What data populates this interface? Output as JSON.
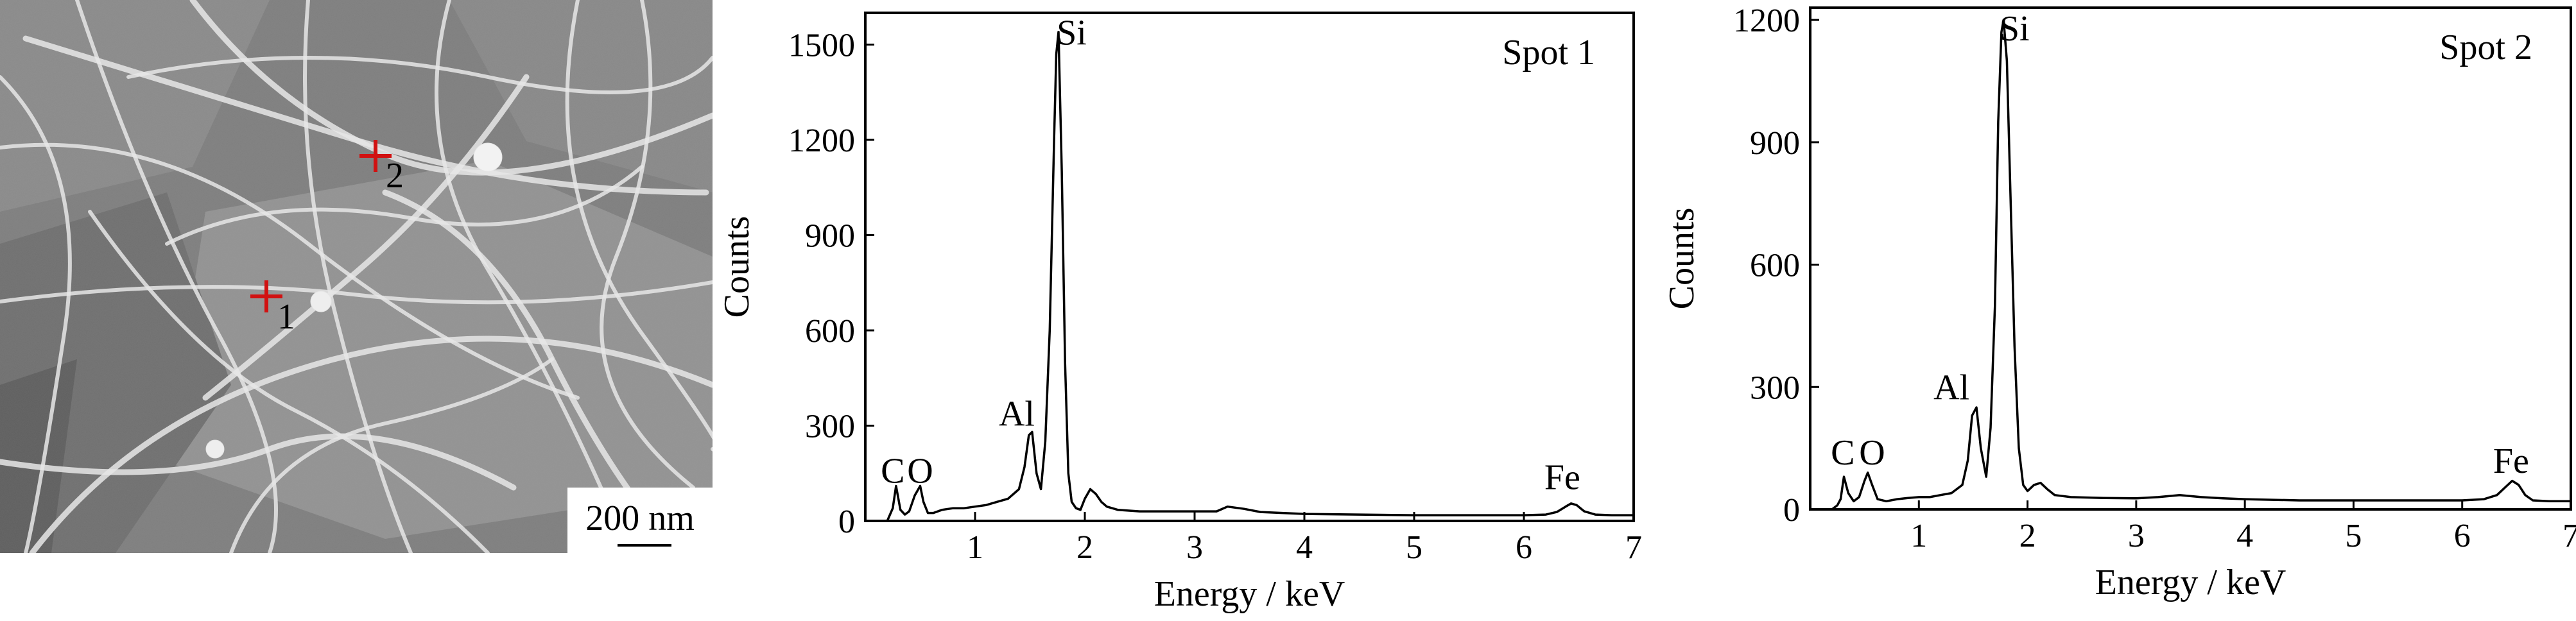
{
  "sem": {
    "scale_bar": "200 nm",
    "markers": [
      {
        "label": "1",
        "color": "#d11111"
      },
      {
        "label": "2",
        "color": "#d11111"
      }
    ]
  },
  "chart_data": [
    {
      "type": "line",
      "annotation": "Spot 1",
      "xlabel": "Energy / keV",
      "ylabel": "Counts",
      "xlim": [
        0,
        7
      ],
      "ylim": [
        0,
        1600
      ],
      "xticks": [
        1,
        2,
        3,
        4,
        5,
        6,
        7
      ],
      "yticks": [
        0,
        300,
        600,
        900,
        1200,
        1500
      ],
      "grid": false,
      "series": [
        {
          "x": [
            0.0,
            0.05,
            0.1,
            0.15,
            0.2,
            0.25,
            0.28,
            0.32,
            0.36,
            0.4,
            0.45,
            0.5,
            0.53,
            0.57,
            0.62,
            0.7,
            0.8,
            0.9,
            1.0,
            1.1,
            1.2,
            1.3,
            1.4,
            1.45,
            1.49,
            1.52,
            1.56,
            1.6,
            1.64,
            1.68,
            1.72,
            1.74,
            1.76,
            1.79,
            1.82,
            1.85,
            1.88,
            1.92,
            1.96,
            2.0,
            2.05,
            2.1,
            2.15,
            2.2,
            2.3,
            2.5,
            2.8,
            3.0,
            3.2,
            3.3,
            3.45,
            3.6,
            3.8,
            4.0,
            4.5,
            5.0,
            5.5,
            6.0,
            6.2,
            6.3,
            6.38,
            6.43,
            6.48,
            6.55,
            6.65,
            6.8,
            7.0
          ],
          "y": [
            0,
            0,
            0,
            0,
            0,
            40,
            110,
            35,
            20,
            30,
            80,
            110,
            60,
            25,
            25,
            35,
            40,
            40,
            45,
            50,
            60,
            70,
            100,
            170,
            270,
            280,
            150,
            100,
            250,
            600,
            1200,
            1470,
            1540,
            1100,
            500,
            150,
            60,
            40,
            35,
            70,
            100,
            85,
            60,
            45,
            35,
            30,
            30,
            30,
            30,
            45,
            38,
            28,
            25,
            22,
            20,
            18,
            18,
            18,
            20,
            28,
            45,
            55,
            50,
            30,
            20,
            18,
            18
          ]
        }
      ],
      "peak_labels": [
        {
          "text": "C",
          "x": 0.25,
          "y": 120
        },
        {
          "text": "O",
          "x": 0.5,
          "y": 120
        },
        {
          "text": "Al",
          "x": 1.38,
          "y": 300
        },
        {
          "text": "Si",
          "x": 1.88,
          "y": 1500
        },
        {
          "text": "Fe",
          "x": 6.35,
          "y": 100
        }
      ]
    },
    {
      "type": "line",
      "annotation": "Spot 2",
      "xlabel": "Energy / keV",
      "ylabel": "Counts",
      "xlim": [
        0,
        7
      ],
      "ylim": [
        0,
        1230
      ],
      "xticks": [
        1,
        2,
        3,
        4,
        5,
        6,
        7
      ],
      "yticks": [
        0,
        300,
        600,
        900,
        1200
      ],
      "grid": false,
      "series": [
        {
          "x": [
            0.0,
            0.1,
            0.2,
            0.25,
            0.28,
            0.31,
            0.35,
            0.4,
            0.45,
            0.5,
            0.53,
            0.57,
            0.62,
            0.7,
            0.8,
            0.9,
            1.0,
            1.1,
            1.2,
            1.3,
            1.4,
            1.45,
            1.49,
            1.53,
            1.57,
            1.62,
            1.66,
            1.7,
            1.73,
            1.76,
            1.78,
            1.81,
            1.84,
            1.88,
            1.92,
            1.96,
            2.0,
            2.06,
            2.12,
            2.18,
            2.25,
            2.4,
            2.7,
            3.0,
            3.2,
            3.4,
            3.6,
            3.8,
            4.0,
            4.5,
            5.0,
            5.5,
            6.0,
            6.2,
            6.32,
            6.4,
            6.46,
            6.52,
            6.58,
            6.65,
            6.8,
            7.0
          ],
          "y": [
            0,
            0,
            0,
            10,
            25,
            80,
            40,
            20,
            30,
            70,
            90,
            60,
            25,
            20,
            25,
            28,
            30,
            30,
            35,
            40,
            60,
            120,
            230,
            250,
            150,
            80,
            200,
            500,
            950,
            1170,
            1200,
            1100,
            800,
            400,
            150,
            60,
            45,
            60,
            65,
            50,
            35,
            30,
            28,
            27,
            30,
            35,
            30,
            27,
            25,
            22,
            22,
            22,
            22,
            25,
            35,
            55,
            70,
            60,
            35,
            22,
            20,
            20
          ]
        }
      ],
      "peak_labels": [
        {
          "text": "C",
          "x": 0.3,
          "y": 110
        },
        {
          "text": "O",
          "x": 0.57,
          "y": 110
        },
        {
          "text": "Al",
          "x": 1.3,
          "y": 270
        },
        {
          "text": "Si",
          "x": 1.88,
          "y": 1150
        },
        {
          "text": "Fe",
          "x": 6.45,
          "y": 90
        }
      ]
    }
  ]
}
